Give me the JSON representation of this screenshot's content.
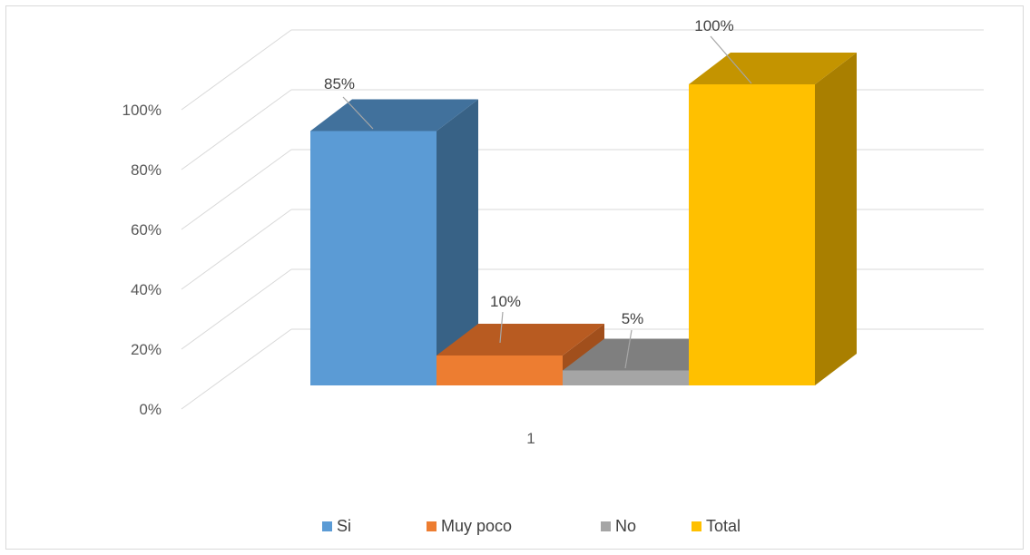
{
  "chart_data": {
    "type": "bar",
    "title": "",
    "xlabel": "",
    "ylabel": "",
    "categories": [
      "1"
    ],
    "series": [
      {
        "name": "Si",
        "values": [
          85
        ],
        "label": "85%",
        "color": "#5b9bd5",
        "top_color": "#41719c",
        "side_color": "#386286"
      },
      {
        "name": "Muy poco",
        "values": [
          10
        ],
        "label": "10%",
        "color": "#ed7d31",
        "top_color": "#b85b21",
        "side_color": "#a14f1c"
      },
      {
        "name": "No",
        "values": [
          5
        ],
        "label": "5%",
        "color": "#a5a5a5",
        "top_color": "#7f7f7f",
        "side_color": "#6f6f6f"
      },
      {
        "name": "Total",
        "values": [
          100
        ],
        "label": "100%",
        "color": "#ffc000",
        "top_color": "#c49400",
        "side_color": "#a97f00"
      }
    ],
    "ylim": [
      0,
      100
    ],
    "y_ticks": [
      "0%",
      "20%",
      "40%",
      "60%",
      "80%",
      "100%"
    ],
    "grid": true,
    "legend_position": "bottom"
  }
}
